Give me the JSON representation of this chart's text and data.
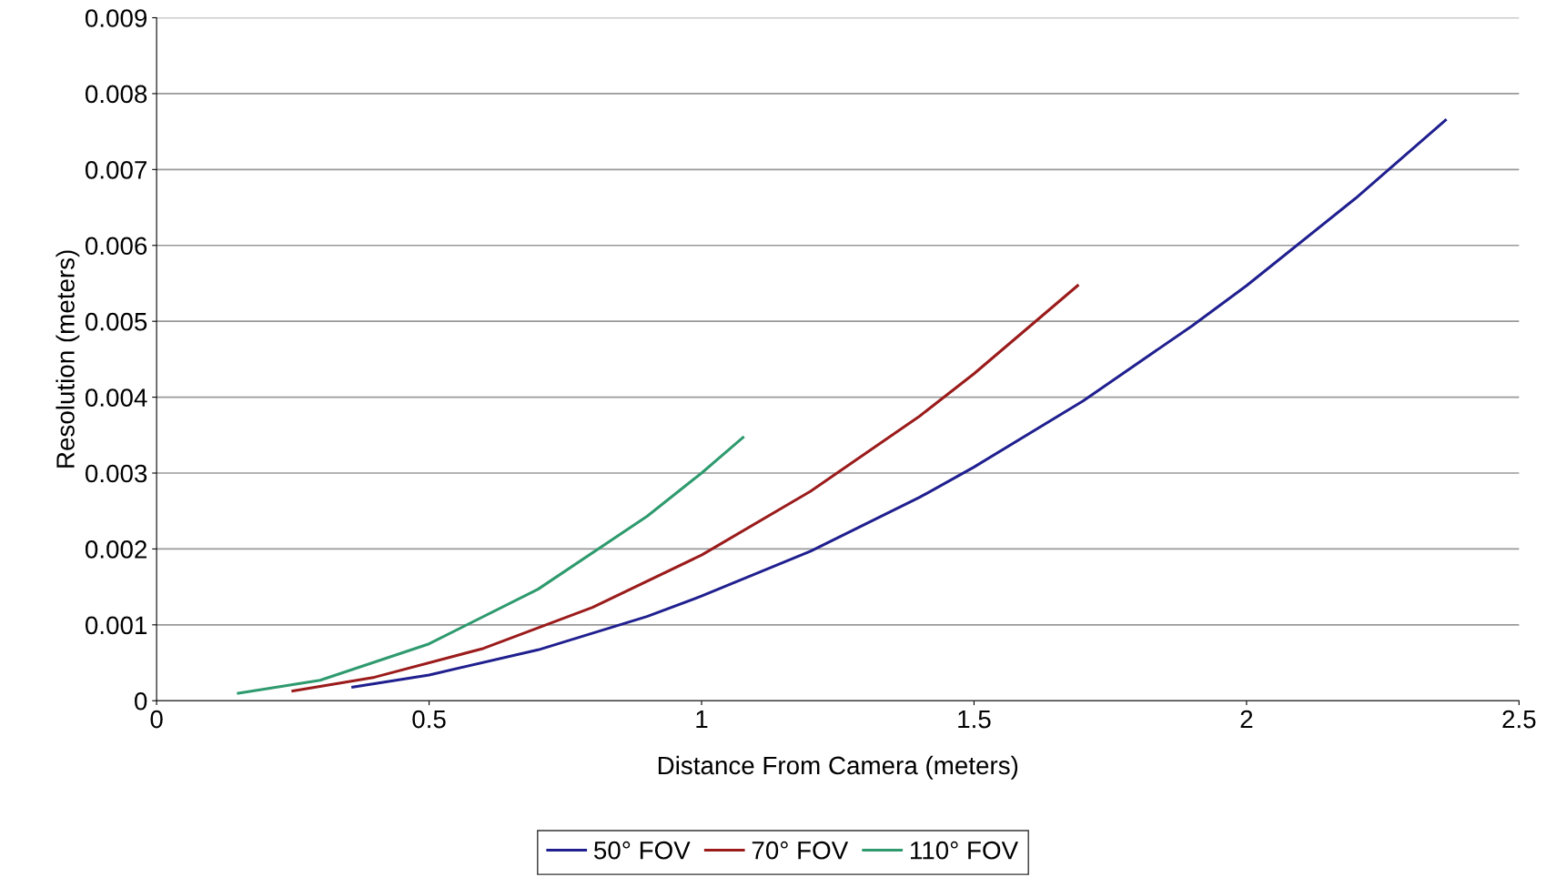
{
  "chart_data": {
    "type": "line",
    "xlabel": "Distance From Camera (meters)",
    "ylabel": "Resolution (meters)",
    "xlim": [
      0,
      2.5
    ],
    "xticks": [
      0,
      0.5,
      1,
      1.5,
      2,
      2.5
    ],
    "ylim": [
      0,
      0.009
    ],
    "yticks": [
      0,
      0.001,
      0.002,
      0.003,
      0.004,
      0.005,
      0.006,
      0.007,
      0.008,
      0.009
    ],
    "grid": "y",
    "legend": "bottom",
    "marker": "none",
    "line_style": "solid",
    "series": [
      {
        "name": "50° FOV",
        "color": "#1f1f8f",
        "x": [
          0.36,
          0.5,
          0.7,
          0.9,
          1.0,
          1.2,
          1.4,
          1.5,
          1.7,
          1.9,
          2.0,
          2.2,
          2.365
        ],
        "values": [
          0.00018,
          0.00034,
          0.00067,
          0.00111,
          0.00138,
          0.00197,
          0.00268,
          0.00308,
          0.00395,
          0.00494,
          0.00547,
          0.00662,
          0.00765
        ]
      },
      {
        "name": "70° FOV",
        "color": "#9b1b1b",
        "x": [
          0.25,
          0.4,
          0.6,
          0.8,
          1.0,
          1.2,
          1.4,
          1.5,
          1.69
        ],
        "values": [
          0.00013,
          0.00031,
          0.00069,
          0.00123,
          0.00192,
          0.00276,
          0.00375,
          0.00431,
          0.00547
        ]
      },
      {
        "name": "110° FOV",
        "color": "#2e9a6e",
        "x": [
          0.15,
          0.3,
          0.5,
          0.7,
          0.9,
          1.0,
          1.076
        ],
        "values": [
          0.0001,
          0.00027,
          0.00075,
          0.00147,
          0.00243,
          0.003,
          0.00347
        ]
      }
    ]
  }
}
